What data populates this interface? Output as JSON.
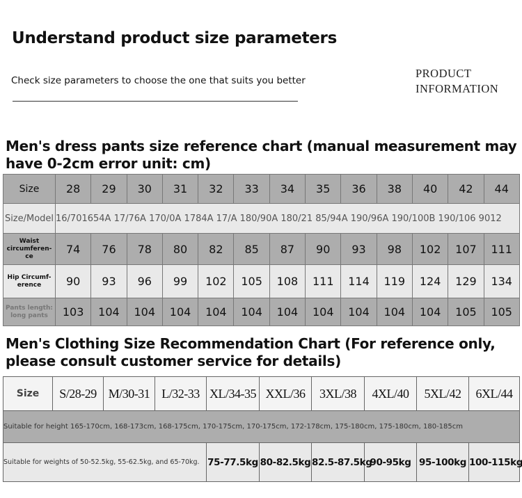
{
  "header": {
    "title": "Understand product size parameters",
    "subtitle": "Check size parameters to choose the one that suits you better",
    "badge": [
      "PRODUCT",
      "INFORMATION"
    ]
  },
  "pants_table": {
    "title": "Men's dress pants size reference chart (manual measurement may have 0-2cm error unit: cm)",
    "rows": [
      {
        "label": "Size",
        "values": [
          28,
          29,
          30,
          31,
          32,
          33,
          34,
          35,
          36,
          38,
          40,
          42,
          44
        ]
      },
      {
        "label": "Size/Model",
        "text": "16/701654A 17/76A 170/0A 1784A 17/A 180/90A 180/21 85/94A 190/96A 190/100B 190/106 9012"
      },
      {
        "label": "Waist circumferen-ce",
        "values": [
          74,
          76,
          78,
          80,
          82,
          85,
          87,
          90,
          93,
          98,
          102,
          107,
          111
        ]
      },
      {
        "label": "Hip Circumf-erence",
        "values": [
          90,
          93,
          96,
          99,
          102,
          105,
          108,
          111,
          114,
          119,
          124,
          129,
          134
        ]
      },
      {
        "label": "Pants length: long pants",
        "values": [
          103,
          104,
          104,
          104,
          104,
          104,
          104,
          104,
          104,
          104,
          104,
          105,
          105
        ]
      }
    ]
  },
  "clothing_table": {
    "title": "Men's Clothing Size Recommendation Chart (For reference only, please consult customer service for details)",
    "size_row": {
      "label": "Size",
      "values": [
        "S/28-29",
        "M/30-31",
        "L/32-33",
        "XL/34-35",
        "XXL/36",
        "3XL/38",
        "4XL/40",
        "5XL/42",
        "6XL/44"
      ]
    },
    "height_row": {
      "text": "Suitable for height 165-170cm, 168-173cm, 168-175cm, 170-175cm, 170-175cm, 172-178cm, 175-180cm, 175-180cm, 180-185cm"
    },
    "weight_row": {
      "text": "Suitable for weights of 50-52.5kg, 55-62.5kg, and 65-70kg.",
      "values": [
        "75-77.5kg",
        "80-82.5kg",
        "82.5-87.5kg",
        "90-95kg",
        "95-100kg",
        "100-115kg"
      ]
    }
  }
}
